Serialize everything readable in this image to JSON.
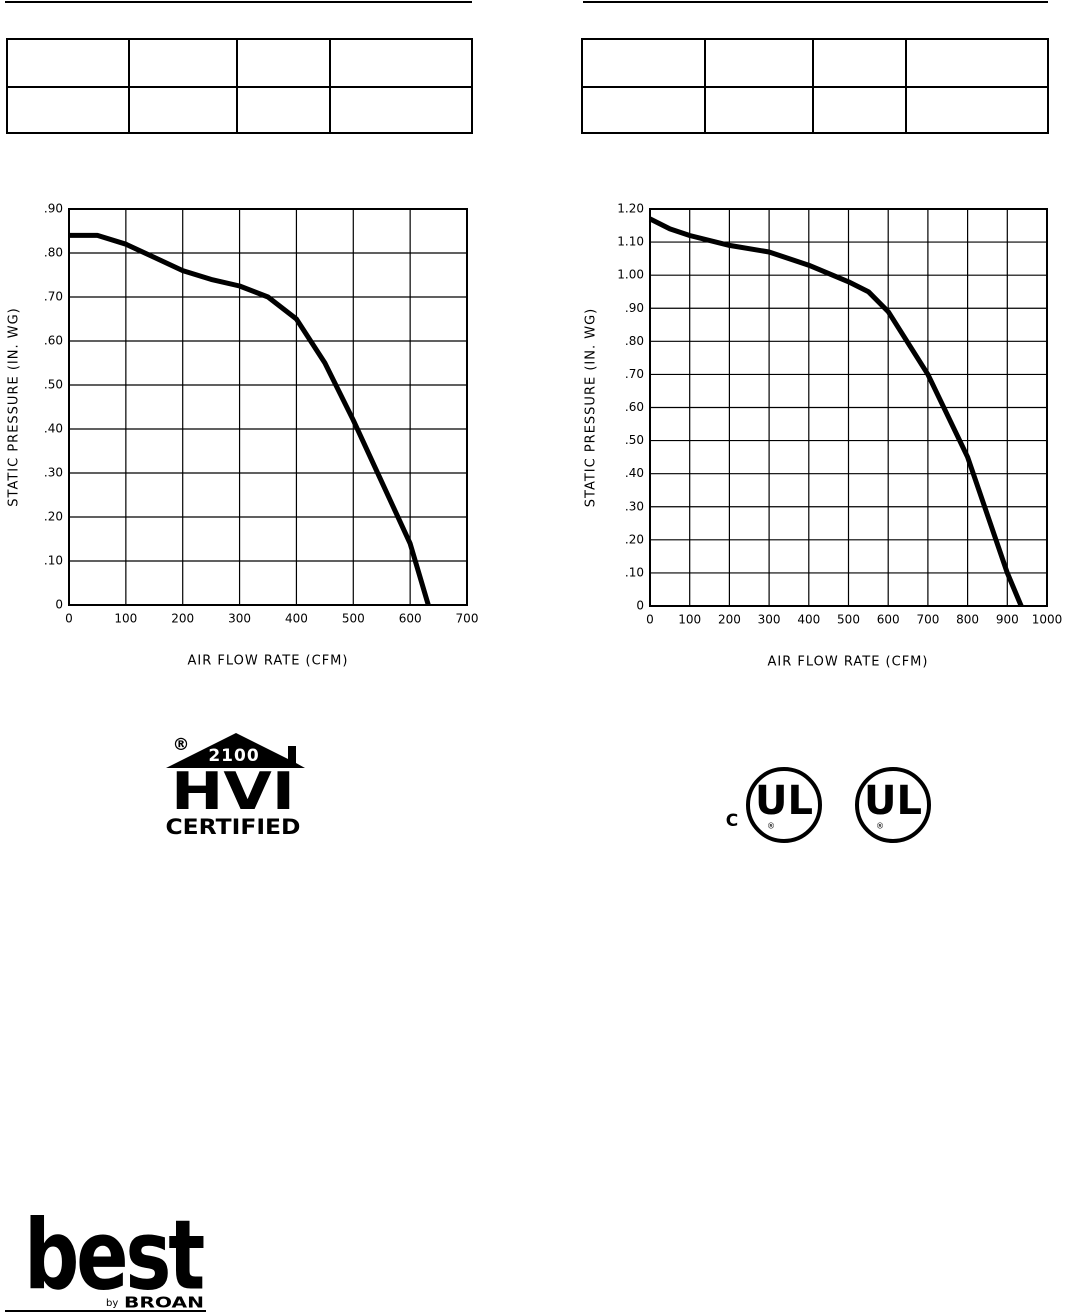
{
  "chart_data": [
    {
      "type": "line",
      "ylabel": "STATIC PRESSURE (IN. WG)",
      "xlabel": "AIR FLOW RATE (CFM)",
      "x": [
        0,
        50,
        100,
        150,
        200,
        250,
        300,
        350,
        400,
        450,
        500,
        550,
        600,
        632
      ],
      "values": [
        0.84,
        0.84,
        0.82,
        0.79,
        0.76,
        0.74,
        0.725,
        0.7,
        0.65,
        0.55,
        0.42,
        0.28,
        0.14,
        0
      ],
      "color": "#000000",
      "xlim": [
        0,
        700
      ],
      "ylim": [
        0,
        0.9
      ],
      "xticks": [
        0,
        100,
        200,
        300,
        400,
        500,
        600,
        700
      ],
      "yticks": [
        0,
        {
          "value": 0.1,
          "label": ".10"
        },
        {
          "value": 0.2,
          "label": ".20"
        },
        {
          "value": 0.3,
          "label": ".30"
        },
        {
          "value": 0.4,
          "label": ".40"
        },
        {
          "value": 0.5,
          "label": ".50"
        },
        {
          "value": 0.6,
          "label": ".60"
        },
        {
          "value": 0.7,
          "label": ".70"
        },
        {
          "value": 0.8,
          "label": ".80"
        },
        {
          "value": 0.9,
          "label": ".90"
        }
      ],
      "grid": true
    },
    {
      "type": "line",
      "ylabel": "STATIC PRESSURE (IN. WG)",
      "xlabel": "AIR FLOW RATE (CFM)",
      "x": [
        0,
        50,
        100,
        200,
        300,
        400,
        500,
        550,
        600,
        700,
        800,
        900,
        935
      ],
      "values": [
        1.17,
        1.14,
        1.12,
        1.09,
        1.07,
        1.03,
        0.98,
        0.95,
        0.89,
        0.7,
        0.45,
        0.1,
        0
      ],
      "color": "#000000",
      "xlim": [
        0,
        1000
      ],
      "ylim": [
        0,
        1.2
      ],
      "xticks": [
        0,
        100,
        200,
        300,
        400,
        500,
        600,
        700,
        800,
        900,
        1000
      ],
      "yticks": [
        0,
        {
          "value": 0.1,
          "label": ".10"
        },
        {
          "value": 0.2,
          "label": ".20"
        },
        {
          "value": 0.3,
          "label": ".30"
        },
        {
          "value": 0.4,
          "label": ".40"
        },
        {
          "value": 0.5,
          "label": ".50"
        },
        {
          "value": 0.6,
          "label": ".60"
        },
        {
          "value": 0.7,
          "label": ".70"
        },
        {
          "value": 0.8,
          "label": ".80"
        },
        {
          "value": 0.9,
          "label": ".90"
        },
        {
          "value": 1.0,
          "label": "1.00"
        },
        {
          "value": 1.1,
          "label": "1.10"
        },
        {
          "value": 1.2,
          "label": "1.20"
        }
      ],
      "grid": true
    }
  ],
  "logos": {
    "hvi": {
      "registered": "®",
      "number": "2100",
      "name": "HVI",
      "label": "CERTIFIED"
    },
    "ul": {
      "prefix": "C",
      "mark": "UL",
      "registered": "®"
    },
    "brand": {
      "name": "best",
      "by": "by",
      "maker": "BROAN"
    }
  }
}
